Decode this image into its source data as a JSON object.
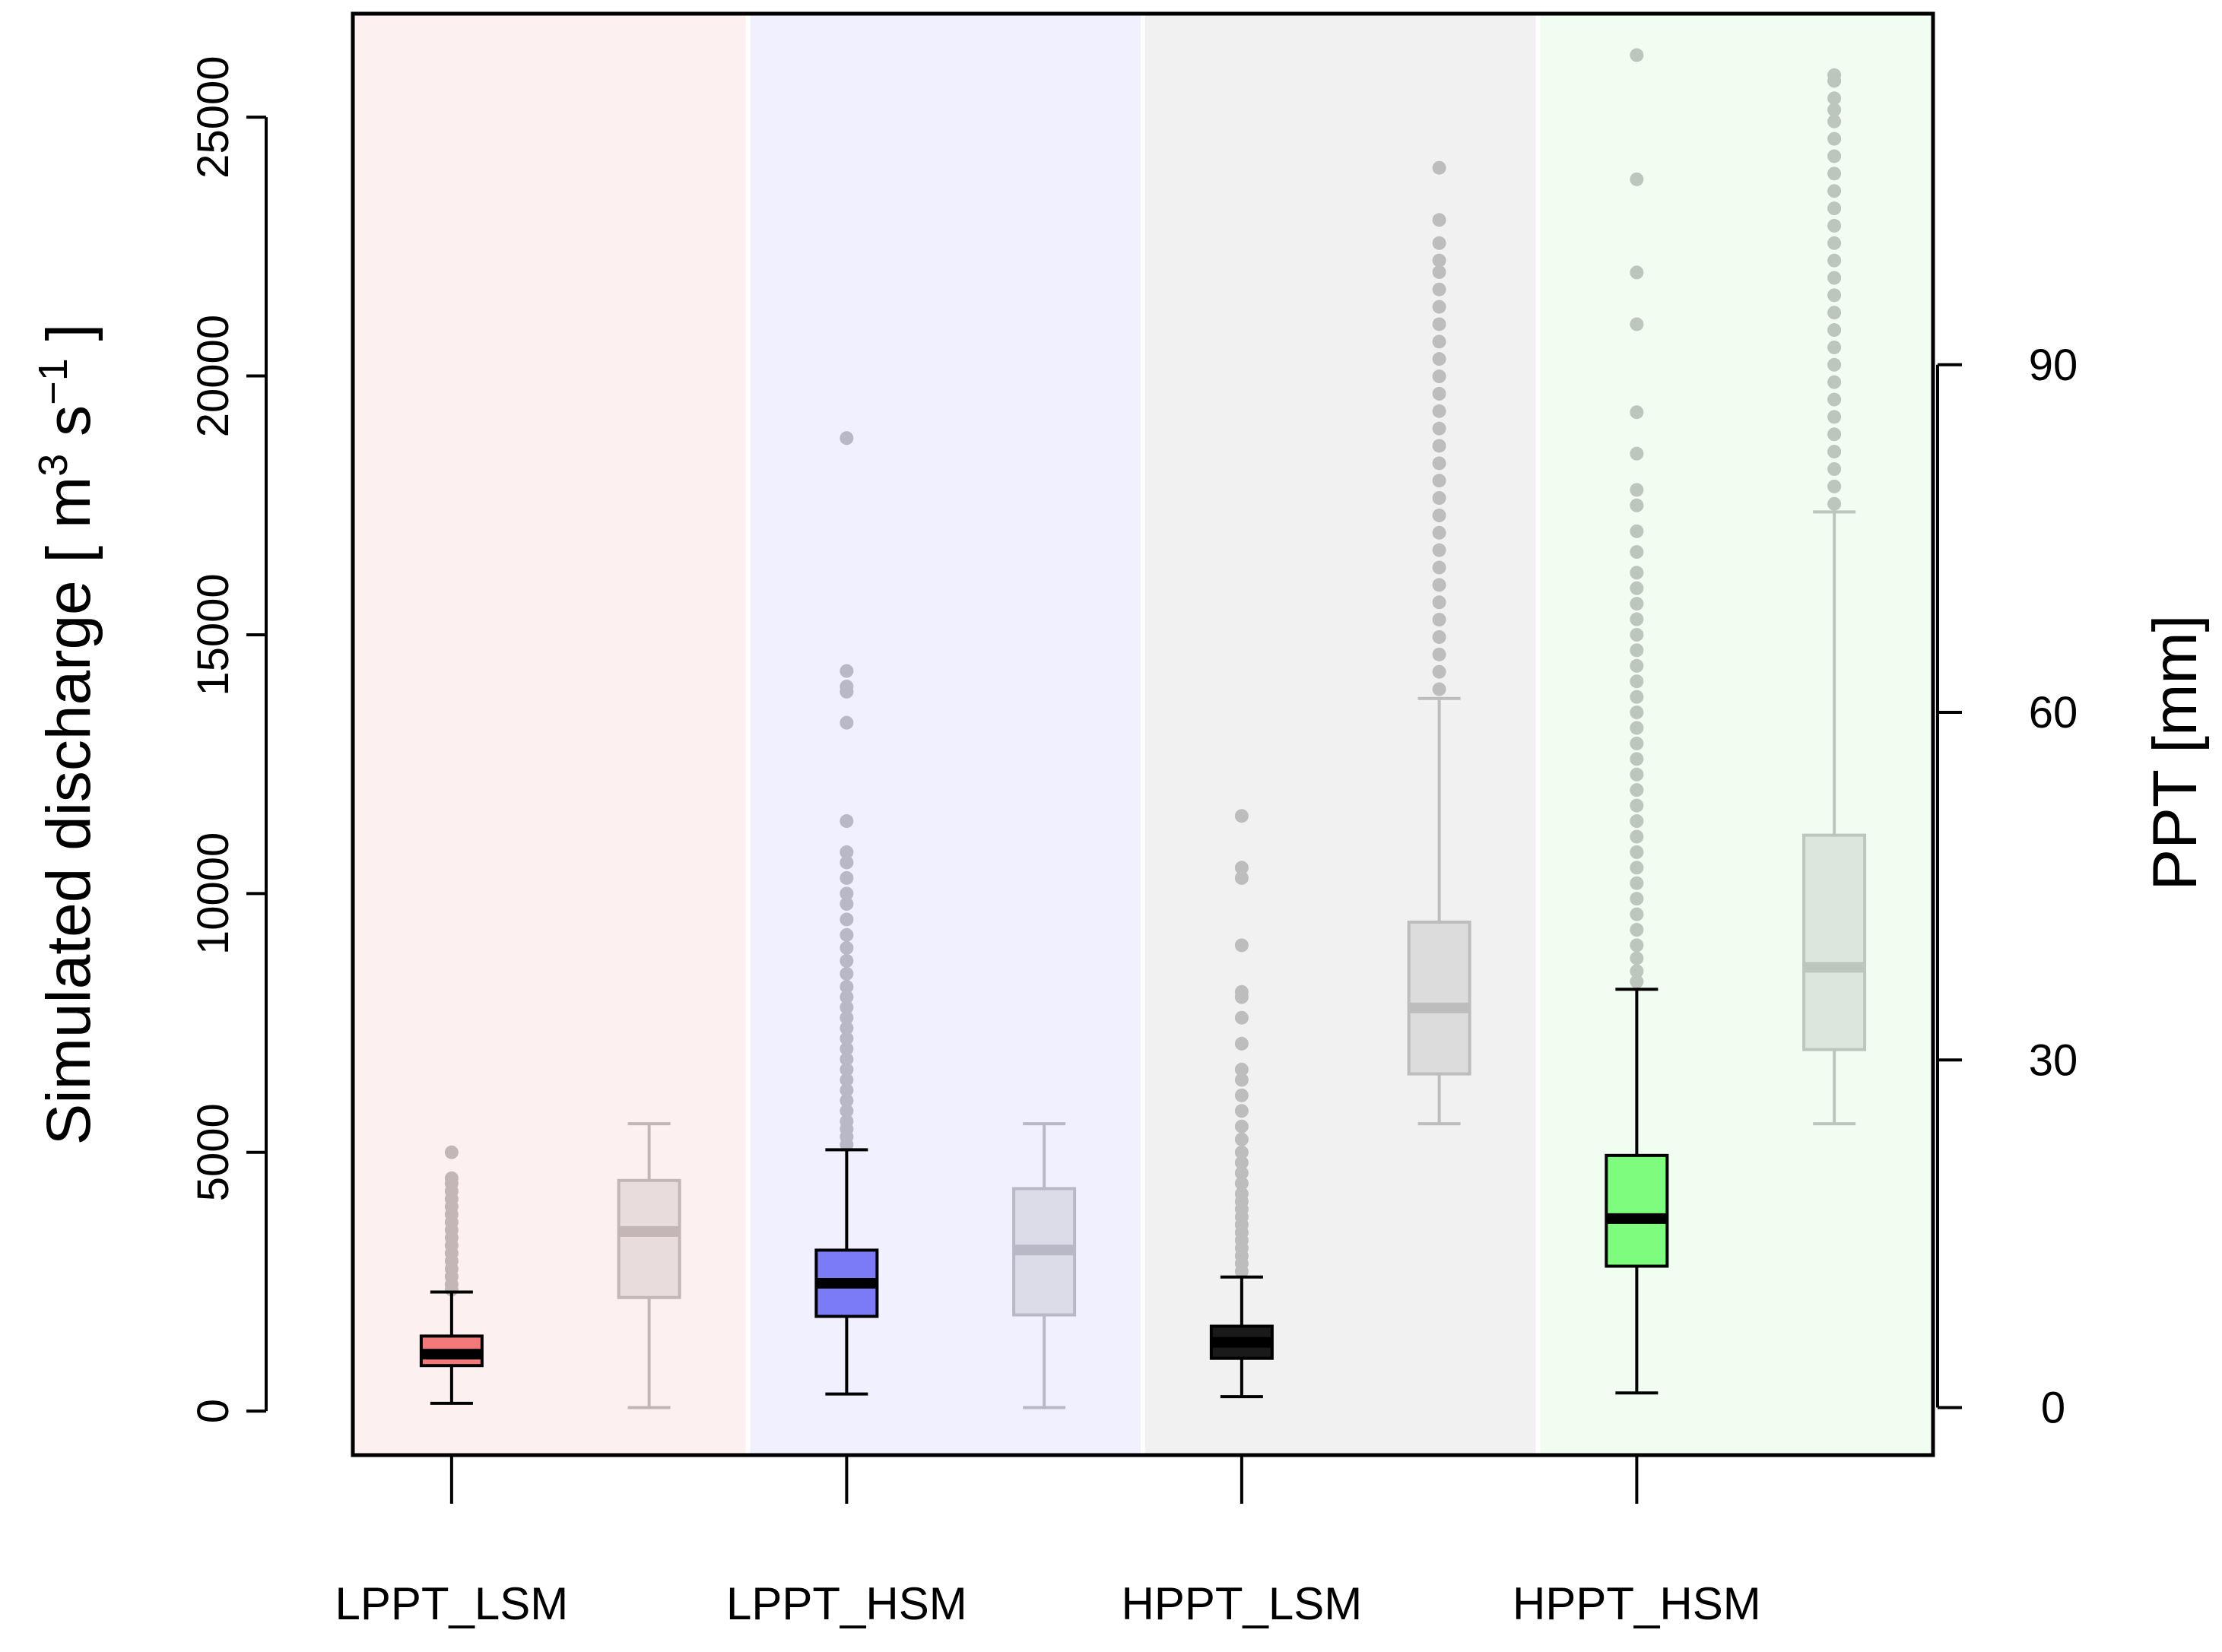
{
  "chart_data": {
    "type": "boxplot",
    "ylabel": {
      "prefix": "Simulated discharge  [ m",
      "sup1": "3",
      "mid": " s",
      "sup2": "−1",
      "suffix": " ]"
    },
    "y2label": "PPT [mm]",
    "ylim": [
      -850,
      27000
    ],
    "y2lim": [
      -4.1,
      120.3
    ],
    "yticks": [
      0,
      5000,
      10000,
      15000,
      20000,
      25000
    ],
    "y2ticks": [
      0,
      30,
      60,
      90
    ],
    "categories": [
      "LPPT_LSM",
      "LPPT_HSM",
      "HPPT_LSM",
      "HPPT_HSM"
    ],
    "panel_colors": [
      "#fdf0f0",
      "#f0f0fe",
      "#f1f1f1",
      "#f2fdf2"
    ],
    "discharge": [
      {
        "category": "LPPT_LSM",
        "fill": "#f47a7a",
        "whisker_low": 150,
        "q1": 880,
        "median": 1100,
        "q3": 1450,
        "whisker_high": 2300,
        "outliers": [
          2350,
          2450,
          2600,
          2750,
          2900,
          3050,
          3200,
          3350,
          3500,
          3650,
          3800,
          3950,
          4100,
          4250,
          4400,
          4500,
          5000
        ]
      },
      {
        "category": "LPPT_HSM",
        "fill": "#7b7bf7",
        "whisker_low": 330,
        "q1": 1830,
        "median": 2470,
        "q3": 3110,
        "whisker_high": 5050,
        "outliers": [
          5150,
          5300,
          5450,
          5600,
          5800,
          6000,
          6200,
          6400,
          6600,
          6800,
          7000,
          7200,
          7400,
          7600,
          7800,
          8000,
          8200,
          8450,
          8700,
          8950,
          9200,
          9500,
          9800,
          10000,
          10300,
          10600,
          10800,
          11400,
          13300,
          13900,
          14000,
          14300,
          18800
        ]
      },
      {
        "category": "HPPT_LSM",
        "fill": "#1a1a1a",
        "whisker_low": 280,
        "q1": 1020,
        "median": 1330,
        "q3": 1640,
        "whisker_high": 2590,
        "outliers": [
          2700,
          2850,
          3000,
          3150,
          3300,
          3450,
          3600,
          3750,
          3900,
          4050,
          4200,
          4400,
          4600,
          4800,
          5000,
          5250,
          5500,
          5800,
          6100,
          6400,
          6600,
          7100,
          7600,
          8000,
          8100,
          9000,
          10300,
          10500,
          11500
        ]
      },
      {
        "category": "HPPT_HSM",
        "fill": "#7dfc7d",
        "whisker_low": 350,
        "q1": 2800,
        "median": 3720,
        "q3": 4940,
        "whisker_high": 8150,
        "outliers": [
          8300,
          8500,
          8750,
          9000,
          9300,
          9600,
          9900,
          10200,
          10500,
          10800,
          11100,
          11400,
          11700,
          12000,
          12300,
          12600,
          12900,
          13200,
          13500,
          13800,
          14100,
          14400,
          14700,
          15000,
          15300,
          15600,
          15900,
          16200,
          16600,
          17000,
          17500,
          17800,
          18500,
          19300,
          21000,
          22000,
          23800,
          26200
        ]
      }
    ],
    "ppt": [
      {
        "category": "LPPT_LSM",
        "fill": "#e8dcdc",
        "stroke": "#c4b6b6",
        "whisker_low": 0,
        "q1": 9.5,
        "median": 15.2,
        "q3": 19.6,
        "whisker_high": 24.5,
        "outliers": []
      },
      {
        "category": "LPPT_HSM",
        "fill": "#dcdce8",
        "stroke": "#b8b8c6",
        "whisker_low": 0,
        "q1": 8.0,
        "median": 13.6,
        "q3": 18.9,
        "whisker_high": 24.5,
        "outliers": []
      },
      {
        "category": "HPPT_LSM",
        "fill": "#dcdcdc",
        "stroke": "#bdbdbd",
        "whisker_low": 24.5,
        "q1": 28.8,
        "median": 34.5,
        "q3": 41.9,
        "whisker_high": 61.2,
        "outliers": [
          62.0,
          63.5,
          65.0,
          66.5,
          68.0,
          69.5,
          71.0,
          72.5,
          74.0,
          75.5,
          77.0,
          78.5,
          80.0,
          81.5,
          83.0,
          84.5,
          86.0,
          87.5,
          89.0,
          90.5,
          92.0,
          93.5,
          95.0,
          96.5,
          98.0,
          99.0,
          100.5,
          102.5,
          107.0
        ]
      },
      {
        "category": "HPPT_HSM",
        "fill": "#dde6dd",
        "stroke": "#bcc6bc",
        "whisker_low": 24.5,
        "q1": 30.9,
        "median": 38.0,
        "q3": 49.4,
        "whisker_high": 77.3,
        "outliers": [
          78.0,
          79.5,
          81.0,
          82.5,
          84.0,
          85.5,
          87.0,
          88.5,
          90.0,
          91.5,
          93.0,
          94.5,
          96.0,
          97.5,
          99.0,
          100.5,
          102.0,
          103.5,
          105.0,
          106.5,
          108.0,
          109.5,
          111.0,
          112.0,
          113.0,
          114.5,
          115.0
        ]
      }
    ]
  }
}
